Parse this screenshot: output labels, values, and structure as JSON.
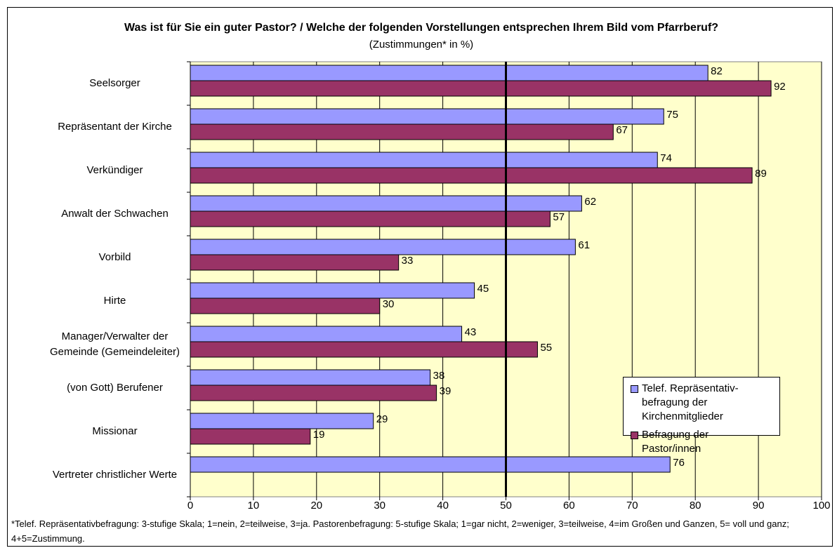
{
  "chart_data": {
    "type": "bar",
    "orientation": "horizontal",
    "title": "Was ist für Sie ein guter Pastor? / Welche der folgenden Vorstellungen entsprechen Ihrem Bild vom Pfarrberuf?",
    "subtitle": "(Zustimmungen* in %)",
    "categories": [
      "Seelsorger",
      "Repräsentant der Kirche",
      "Verkündiger",
      "Anwalt der Schwachen",
      "Vorbild",
      "Hirte",
      "Manager/Verwalter der Gemeinde (Gemeindeleiter)",
      "(von Gott) Berufener",
      "Missionar",
      "Vertreter christlicher Werte"
    ],
    "series": [
      {
        "name": "Telef. Repräsentativ-befragung der Kirchenmitglieder",
        "color": "#9999ff",
        "values": [
          82,
          75,
          74,
          62,
          61,
          45,
          43,
          38,
          29,
          76
        ]
      },
      {
        "name": "Befragung der Pastor/innen",
        "color": "#993366",
        "values": [
          92,
          67,
          89,
          57,
          33,
          30,
          55,
          39,
          19,
          null
        ]
      }
    ],
    "xlim": [
      0,
      100
    ],
    "xticks": [
      0,
      10,
      20,
      30,
      40,
      50,
      60,
      70,
      80,
      90,
      100
    ],
    "grid": true,
    "reference_line": 50,
    "legend": "right",
    "footnote": "*Telef. Repräsentativbefragung: 3-stufige Skala; 1=nein, 2=teilweise, 3=ja. Pastorenbefragung: 5-stufige Skala; 1=gar nicht, 2=weniger, 3=teilweise, 4=im Großen und Ganzen, 5= voll und ganz; 4+5=Zustimmung."
  }
}
